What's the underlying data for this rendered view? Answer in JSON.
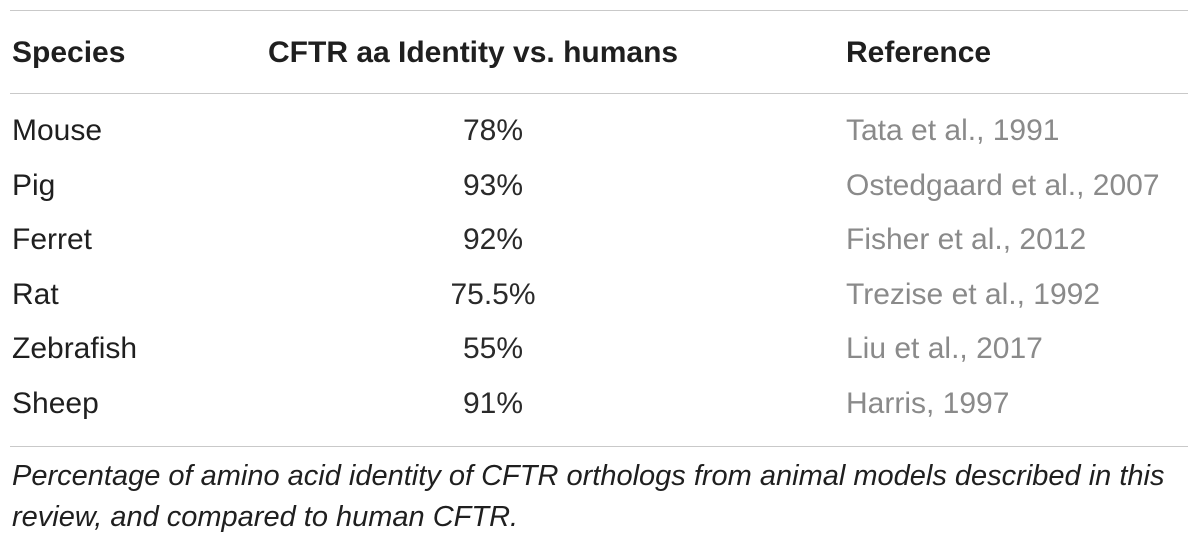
{
  "table": {
    "headers": {
      "species": "Species",
      "identity": "CFTR aa Identity vs. humans",
      "reference": "Reference"
    },
    "rows": [
      {
        "species": "Mouse",
        "identity": "78%",
        "reference": "Tata et al., 1991"
      },
      {
        "species": "Pig",
        "identity": "93%",
        "reference": "Ostedgaard et al., 2007"
      },
      {
        "species": "Ferret",
        "identity": "92%",
        "reference": "Fisher et al., 2012"
      },
      {
        "species": "Rat",
        "identity": "75.5%",
        "reference": "Trezise et al., 1992"
      },
      {
        "species": "Zebrafish",
        "identity": "55%",
        "reference": "Liu et al., 2017"
      },
      {
        "species": "Sheep",
        "identity": "91%",
        "reference": "Harris, 1997"
      }
    ],
    "caption": "Percentage of amino acid identity of CFTR orthologs from animal models described in this review, and compared to human CFTR."
  },
  "colors": {
    "text": "#1f1f1f",
    "reference_text": "#8a8a8a",
    "rule": "#c9c9c9"
  }
}
